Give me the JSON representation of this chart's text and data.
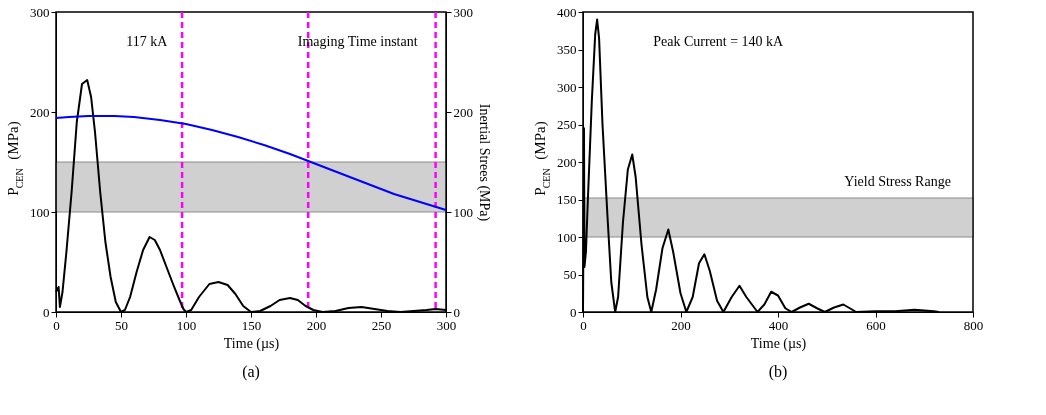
{
  "chart_data": [
    {
      "type": "line",
      "title": "(a)",
      "xlabel": "Time (µs)",
      "ylabel": "P$_{CEN}$ (MPa)",
      "y2label": "Inertial Strees (MPa)",
      "xlim": [
        0,
        300
      ],
      "xticks": [
        0,
        50,
        100,
        150,
        200,
        250,
        300
      ],
      "ylim": [
        0,
        300
      ],
      "yticks": [
        0,
        100,
        200,
        300
      ],
      "y2lim": [
        0,
        300
      ],
      "y2ticks": [
        0,
        100,
        200,
        300
      ],
      "grid": false,
      "marker": "none",
      "line_style": "solid",
      "annotations": [
        "117 kA",
        "Imaging Time instant"
      ],
      "bands": [
        {
          "axis": "y",
          "from": 100,
          "to": 150,
          "color": "#999999"
        }
      ],
      "ref_lines": [
        {
          "axis": "x",
          "value": 97,
          "color": "#ff00ff",
          "line_style": "dashed"
        },
        {
          "axis": "x",
          "value": 194,
          "color": "#ff00ff",
          "line_style": "dashed"
        },
        {
          "axis": "x",
          "value": 292,
          "color": "#ff00ff",
          "line_style": "dashed"
        }
      ],
      "series": [
        {
          "color": "#000000",
          "x": [
            0,
            2,
            3,
            5,
            8,
            12,
            16,
            20,
            24,
            27,
            30,
            34,
            38,
            42,
            46,
            50,
            53,
            57,
            62,
            67,
            72,
            76,
            80,
            85,
            90,
            95,
            98,
            100,
            104,
            110,
            118,
            125,
            132,
            138,
            144,
            150,
            157,
            165,
            172,
            180,
            186,
            192,
            198,
            205,
            215,
            225,
            235,
            245,
            255,
            265,
            275,
            285,
            292,
            300
          ],
          "values": [
            20,
            25,
            5,
            20,
            60,
            120,
            190,
            228,
            232,
            215,
            180,
            120,
            70,
            35,
            10,
            0,
            2,
            15,
            40,
            62,
            75,
            72,
            62,
            45,
            28,
            12,
            3,
            0,
            2,
            15,
            28,
            30,
            27,
            18,
            6,
            0,
            1,
            6,
            12,
            14,
            12,
            6,
            2,
            0,
            1,
            4,
            5,
            3,
            1,
            0,
            1,
            2,
            3,
            2
          ]
        },
        {
          "color": "#0000ff",
          "axis": "y2",
          "x": [
            0,
            10,
            25,
            45,
            60,
            80,
            100,
            120,
            140,
            160,
            180,
            200,
            220,
            240,
            260,
            280,
            300
          ],
          "values": [
            194,
            195,
            196,
            196,
            195,
            192,
            188,
            182,
            175,
            167,
            158,
            148,
            138,
            128,
            118,
            110,
            102
          ]
        }
      ]
    },
    {
      "type": "line",
      "title": "(b)",
      "xlabel": "Time (µs)",
      "ylabel": "P$_{CEN}$ (MPa)",
      "xlim": [
        0,
        800
      ],
      "xticks": [
        0,
        200,
        400,
        600,
        800
      ],
      "ylim": [
        0,
        400
      ],
      "yticks": [
        0,
        50,
        100,
        150,
        200,
        250,
        300,
        350,
        400
      ],
      "grid": false,
      "marker": "none",
      "line_style": "solid",
      "annotations": [
        "Peak Current = 140 kA"
      ],
      "bands": [
        {
          "axis": "y",
          "from": 100,
          "to": 152,
          "color": "#999999",
          "label": "Yield Stress Range"
        }
      ],
      "series": [
        {
          "color": "#000000",
          "x": [
            0,
            2,
            3,
            6,
            10,
            18,
            25,
            29,
            33,
            40,
            50,
            58,
            66,
            72,
            82,
            92,
            101,
            108,
            120,
            132,
            140,
            150,
            163,
            175,
            185,
            200,
            212,
            225,
            238,
            249,
            260,
            275,
            288,
            305,
            321,
            335,
            358,
            372,
            386,
            400,
            415,
            428,
            445,
            463,
            480,
            496,
            515,
            534,
            550,
            560,
            600,
            640,
            680,
            720,
            730
          ],
          "values": [
            0,
            245,
            60,
            80,
            150,
            280,
            370,
            390,
            365,
            250,
            130,
            40,
            0,
            20,
            120,
            190,
            210,
            180,
            90,
            20,
            0,
            30,
            85,
            110,
            80,
            25,
            0,
            20,
            65,
            77,
            55,
            15,
            0,
            20,
            35,
            20,
            0,
            10,
            27,
            22,
            5,
            0,
            6,
            11,
            5,
            0,
            6,
            10,
            4,
            0,
            1,
            1,
            3,
            1,
            0
          ]
        }
      ]
    }
  ]
}
